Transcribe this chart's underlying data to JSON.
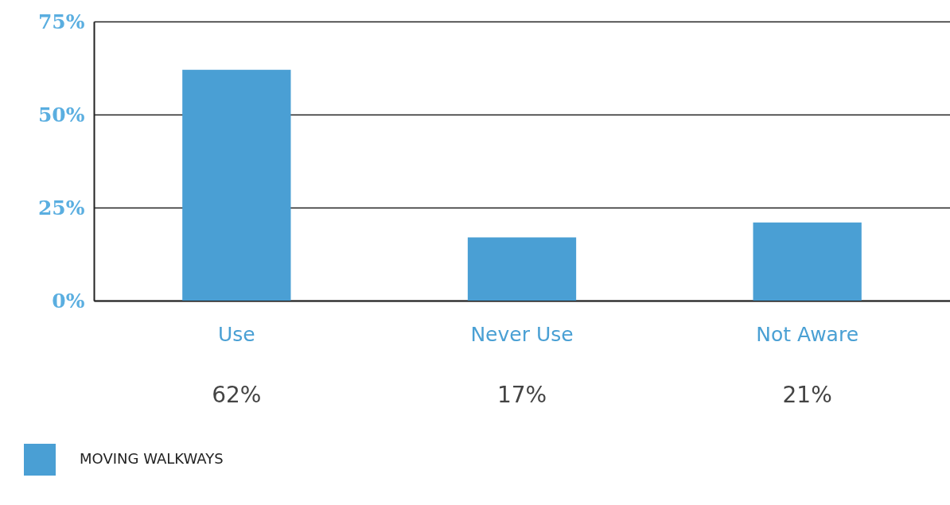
{
  "chart_data": {
    "type": "bar",
    "categories": [
      "Use",
      "Never Use",
      "Not Aware"
    ],
    "series": [
      {
        "name": "MOVING WALKWAYS",
        "color": "#4a9fd4",
        "values": [
          62,
          17,
          21
        ]
      }
    ],
    "value_labels": [
      "62%",
      "17%",
      "21%"
    ],
    "ylim": [
      0,
      75
    ],
    "yticks": [
      {
        "value": 0,
        "label": "0%"
      },
      {
        "value": 25,
        "label": "25%"
      },
      {
        "value": 50,
        "label": "50%"
      },
      {
        "value": 75,
        "label": "75%"
      }
    ],
    "grid": "y",
    "legend": "bottom left"
  }
}
